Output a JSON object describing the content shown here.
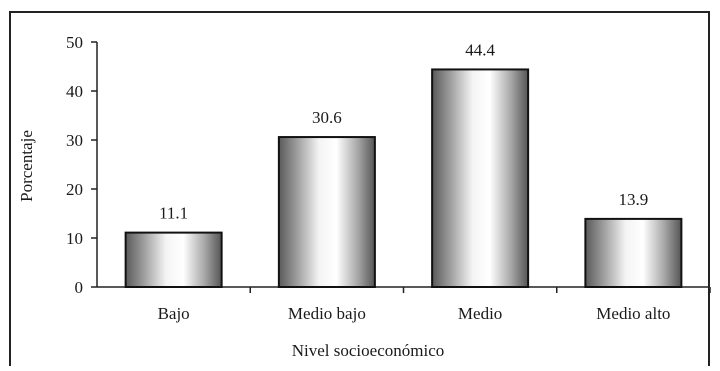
{
  "chart_data": {
    "type": "bar",
    "title": "",
    "xlabel": "Nivel socioeconómico",
    "ylabel": "Porcentaje",
    "categories": [
      "Bajo",
      "Medio bajo",
      "Medio",
      "Medio alto"
    ],
    "values": [
      11.1,
      30.6,
      44.4,
      13.9
    ],
    "data_labels": [
      "11.1",
      "30.6",
      "44.4",
      "13.9"
    ],
    "ylim": [
      0,
      50
    ],
    "yticks": [
      "0",
      "10",
      "20",
      "30",
      "40",
      "50"
    ],
    "grid": false,
    "legend": "none"
  }
}
